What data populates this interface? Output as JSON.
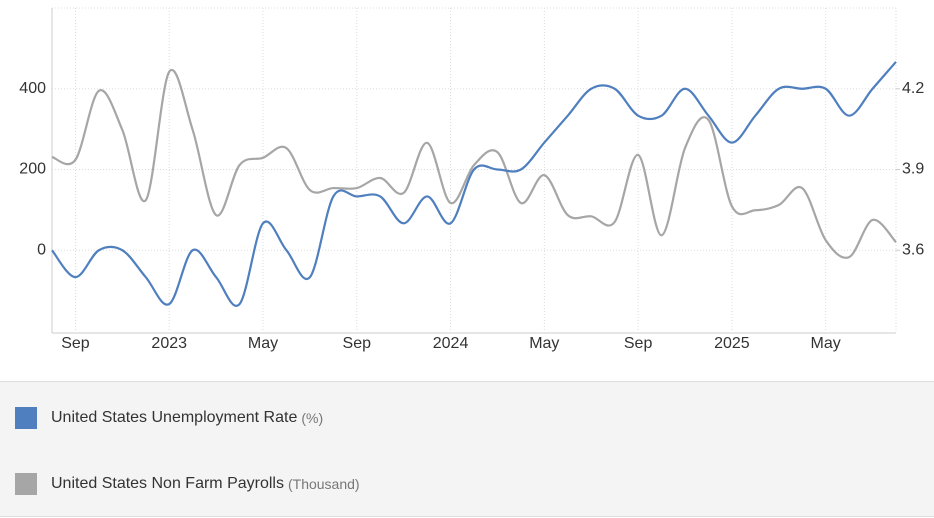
{
  "chart_data": {
    "type": "line",
    "categories": [
      null,
      "Sep",
      null,
      null,
      null,
      "2023",
      null,
      null,
      null,
      "May",
      null,
      null,
      null,
      "Sep",
      null,
      null,
      null,
      "2024",
      null,
      null,
      null,
      "May",
      null,
      null,
      null,
      "Sep",
      null,
      null,
      null,
      "2025",
      null,
      null,
      null,
      "May",
      null,
      null,
      null
    ],
    "series": [
      {
        "name": "United States Unemployment Rate",
        "unit": "(%)",
        "color": "#4f7fbf",
        "axis": "y2",
        "values": [
          3.6,
          3.5,
          3.6,
          3.6,
          3.5,
          3.4,
          3.6,
          3.5,
          3.4,
          3.7,
          3.6,
          3.5,
          3.8,
          3.8,
          3.8,
          3.7,
          3.8,
          3.7,
          3.9,
          3.9,
          3.9,
          4.0,
          4.1,
          4.2,
          4.2,
          4.1,
          4.1,
          4.2,
          4.1,
          4.0,
          4.1,
          4.2,
          4.2,
          4.2,
          4.1,
          4.2,
          4.3
        ]
      },
      {
        "name": "United States Non Farm Payrolls",
        "unit": "(Thousand)",
        "color": "#a6a6a6",
        "values": [
          231,
          224,
          395,
          298,
          124,
          442,
          298,
          87,
          211,
          229,
          253,
          149,
          154,
          154,
          179,
          142,
          266,
          117,
          211,
          243,
          117,
          186,
          87,
          84,
          70,
          236,
          37,
          253,
          323,
          109,
          99,
          112,
          154,
          25,
          -17,
          75,
          20
        ]
      }
    ],
    "ylim": [
      -200,
      600
    ],
    "yticks": [
      0,
      200,
      400
    ],
    "y2lim": [
      3.3,
      4.5
    ],
    "y2ticks": [
      3.6,
      3.9,
      4.2
    ],
    "grid": true
  }
}
